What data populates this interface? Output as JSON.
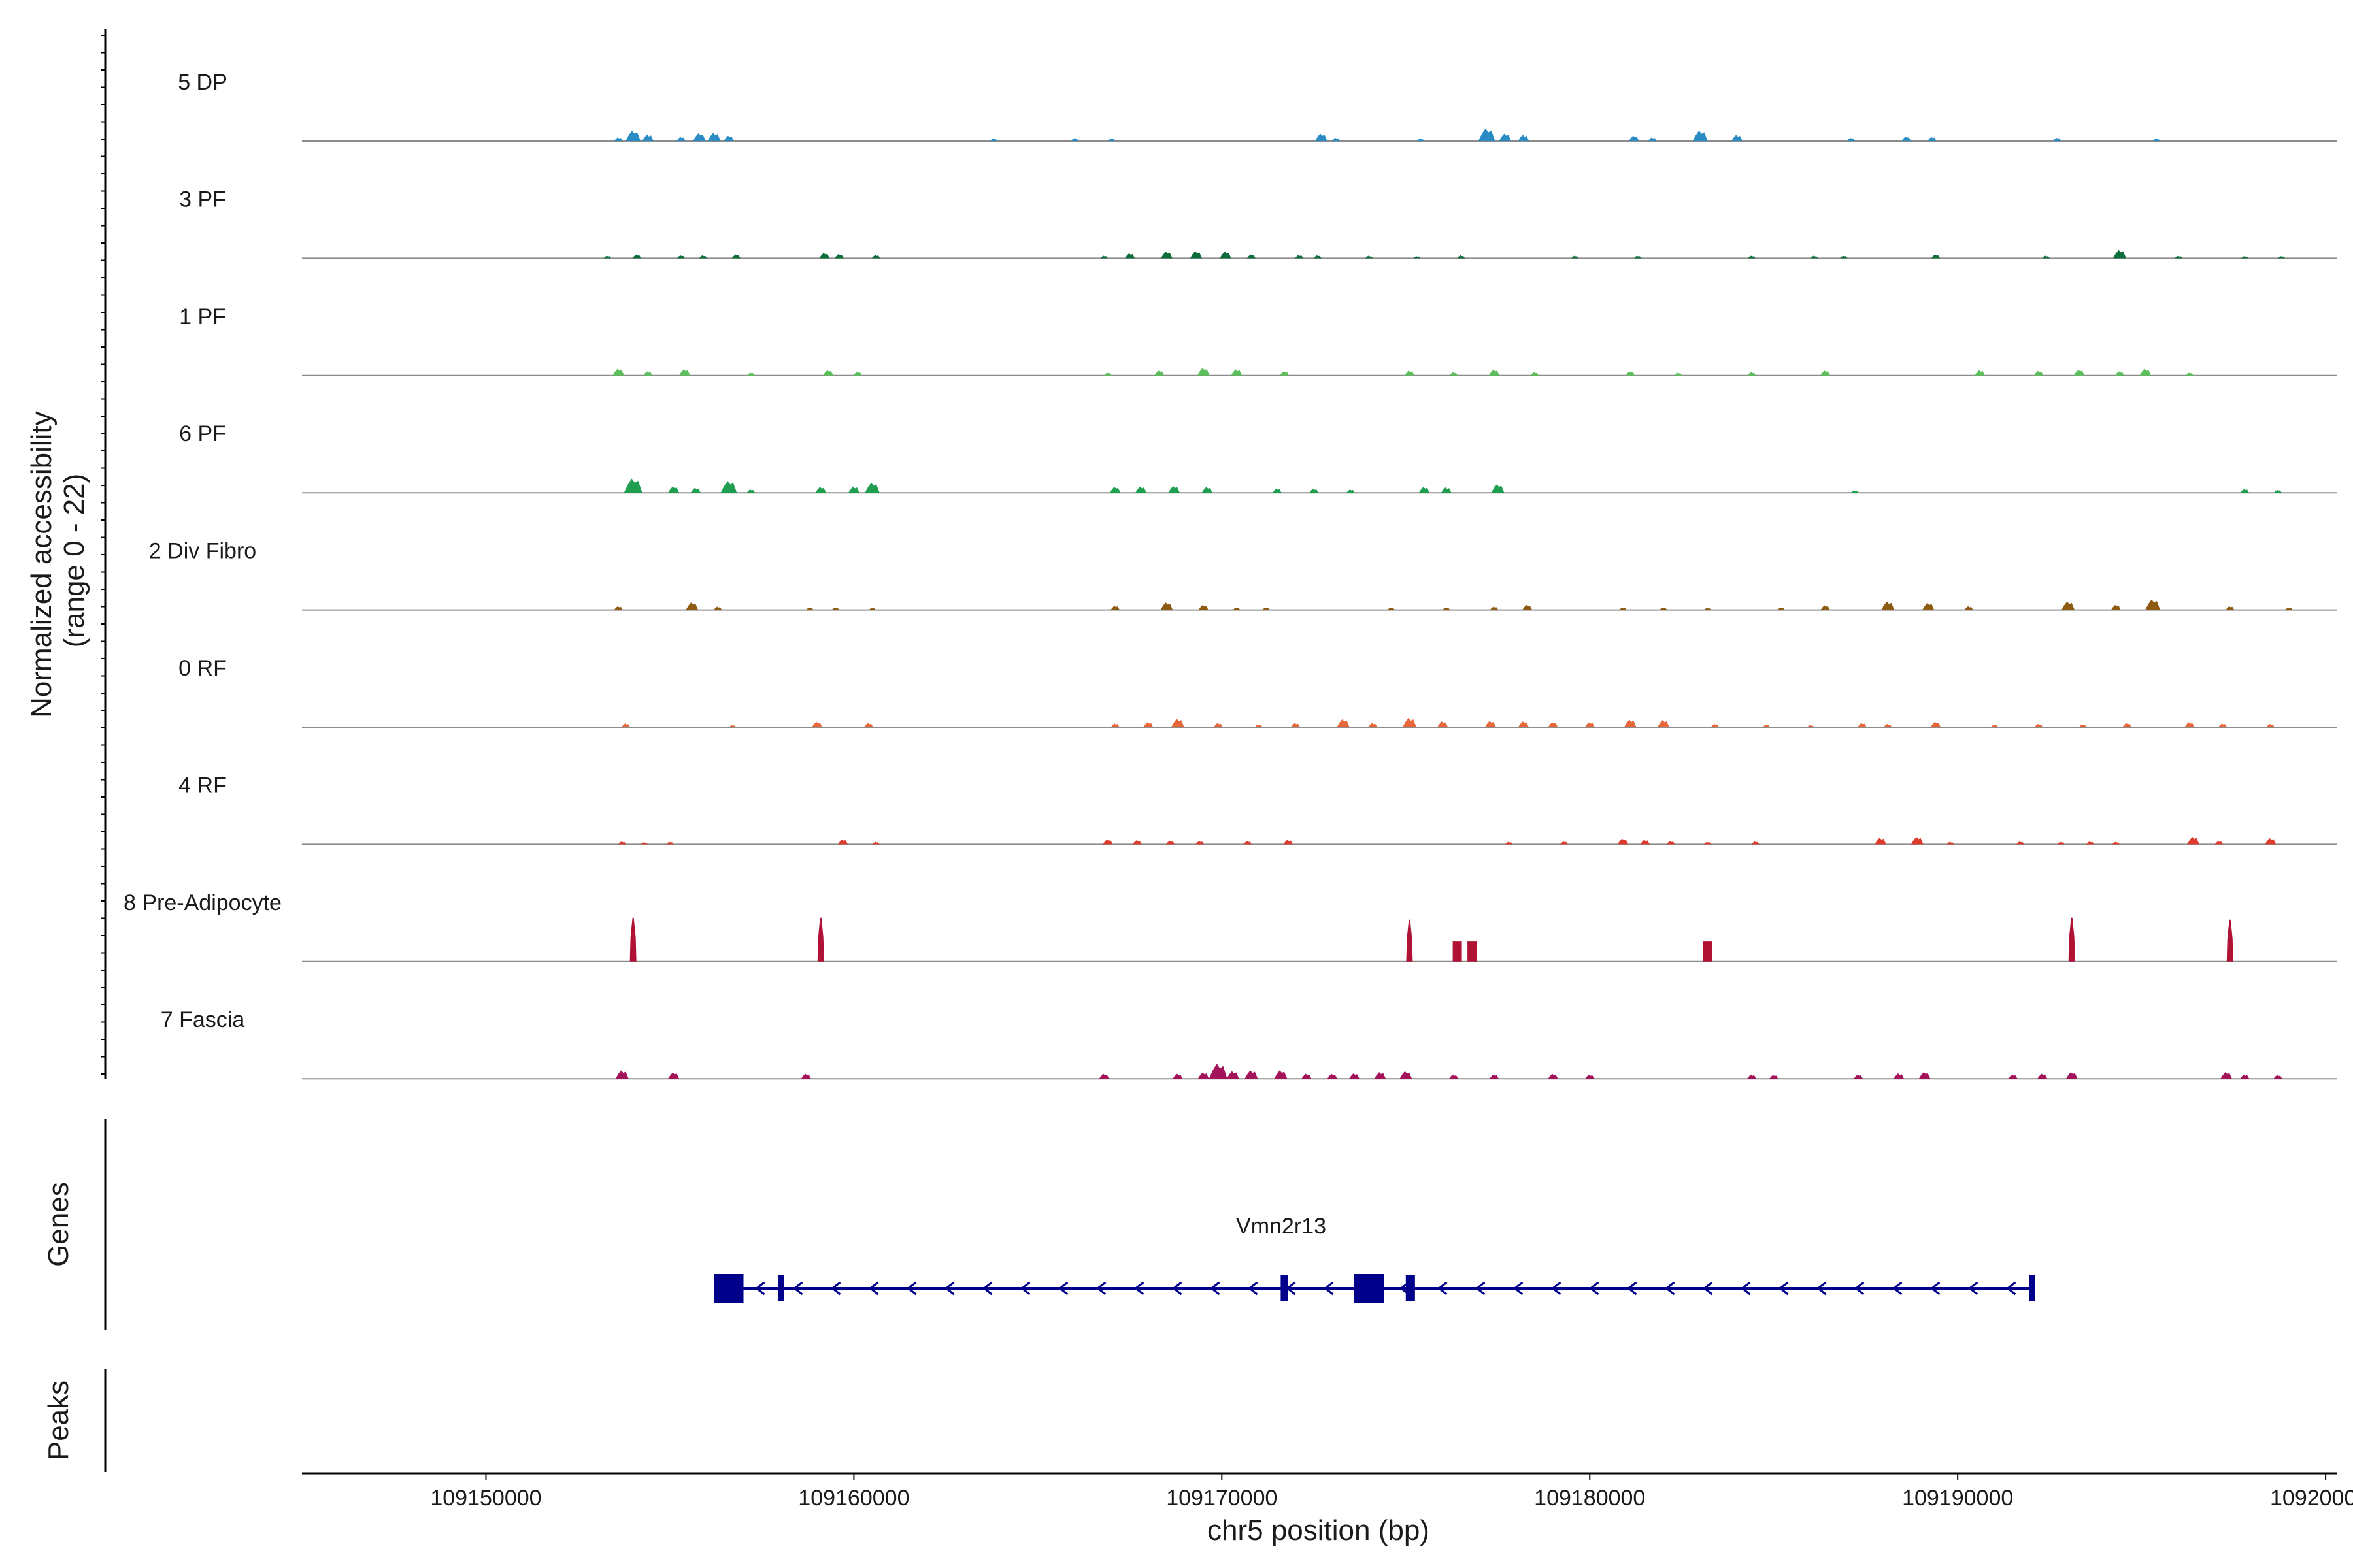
{
  "chart_data": {
    "type": "coverage_track",
    "chromosome": "chr5",
    "region": [
      109145000,
      109200300
    ],
    "xlabel": "chr5 position (bp)",
    "xticks": [
      109150000,
      109160000,
      109170000,
      109180000,
      109190000,
      109200000
    ],
    "xtick_labels": [
      "109150000",
      "109160000",
      "109170000",
      "109180000",
      "109190000",
      "109200000"
    ],
    "ylabel_line1": "Normalized accessibility",
    "ylabel_line2": "(range 0 - 22)",
    "ylim": [
      0,
      22
    ],
    "tracks": [
      {
        "name": "5 DP",
        "color": "#2b8cc4",
        "peaks": [
          [
            109153600,
            0.9
          ],
          [
            109154000,
            2.5
          ],
          [
            109154400,
            1.6
          ],
          [
            109155300,
            1.0
          ],
          [
            109155800,
            1.9
          ],
          [
            109156200,
            2.0
          ],
          [
            109156600,
            1.3
          ],
          [
            109163800,
            0.6
          ],
          [
            109166000,
            0.7
          ],
          [
            109167000,
            0.6
          ],
          [
            109172700,
            1.8
          ],
          [
            109173100,
            0.8
          ],
          [
            109175400,
            0.6
          ],
          [
            109177200,
            3.0
          ],
          [
            109177700,
            1.8
          ],
          [
            109178200,
            1.5
          ],
          [
            109181200,
            1.3
          ],
          [
            109181700,
            0.9
          ],
          [
            109183000,
            2.5
          ],
          [
            109184000,
            1.5
          ],
          [
            109187100,
            0.8
          ],
          [
            109188600,
            1.1
          ],
          [
            109189300,
            1.0
          ],
          [
            109192700,
            0.8
          ],
          [
            109195400,
            0.6
          ]
        ]
      },
      {
        "name": "3 PF",
        "color": "#0b6e3a",
        "peaks": [
          [
            109153300,
            0.6
          ],
          [
            109154100,
            0.9
          ],
          [
            109155300,
            0.7
          ],
          [
            109155900,
            0.7
          ],
          [
            109156800,
            0.9
          ],
          [
            109159200,
            1.3
          ],
          [
            109159600,
            1.0
          ],
          [
            109160600,
            0.8
          ],
          [
            109166800,
            0.6
          ],
          [
            109167500,
            1.2
          ],
          [
            109168500,
            1.6
          ],
          [
            109169300,
            1.7
          ],
          [
            109170100,
            1.6
          ],
          [
            109170800,
            0.9
          ],
          [
            109172100,
            0.8
          ],
          [
            109172600,
            0.7
          ],
          [
            109174000,
            0.6
          ],
          [
            109175300,
            0.5
          ],
          [
            109176500,
            0.7
          ],
          [
            109179600,
            0.6
          ],
          [
            109181300,
            0.6
          ],
          [
            109184400,
            0.6
          ],
          [
            109186100,
            0.6
          ],
          [
            109186900,
            0.6
          ],
          [
            109189400,
            0.9
          ],
          [
            109192400,
            0.6
          ],
          [
            109194400,
            2.0
          ],
          [
            109196000,
            0.6
          ],
          [
            109197800,
            0.5
          ],
          [
            109198800,
            0.5
          ]
        ]
      },
      {
        "name": "1 PF",
        "color": "#5cbf5c",
        "peaks": [
          [
            109153600,
            1.6
          ],
          [
            109154400,
            1.0
          ],
          [
            109155400,
            1.5
          ],
          [
            109157200,
            0.7
          ],
          [
            109159300,
            1.3
          ],
          [
            109160100,
            0.9
          ],
          [
            109166900,
            0.7
          ],
          [
            109168300,
            1.2
          ],
          [
            109169500,
            1.8
          ],
          [
            109170400,
            1.5
          ],
          [
            109171700,
            1.0
          ],
          [
            109175100,
            1.2
          ],
          [
            109176300,
            0.8
          ],
          [
            109177400,
            1.4
          ],
          [
            109178500,
            0.8
          ],
          [
            109181100,
            1.0
          ],
          [
            109182400,
            0.7
          ],
          [
            109184400,
            0.8
          ],
          [
            109186400,
            1.2
          ],
          [
            109190600,
            1.3
          ],
          [
            109192200,
            1.1
          ],
          [
            109193300,
            1.4
          ],
          [
            109194400,
            1.0
          ],
          [
            109195100,
            1.6
          ],
          [
            109196300,
            0.7
          ]
        ]
      },
      {
        "name": "6 PF",
        "color": "#1f9e4f",
        "peaks": [
          [
            109154000,
            3.4
          ],
          [
            109155100,
            1.5
          ],
          [
            109155700,
            1.2
          ],
          [
            109156600,
            2.8
          ],
          [
            109157200,
            0.8
          ],
          [
            109159100,
            1.4
          ],
          [
            109160000,
            1.5
          ],
          [
            109160500,
            2.4
          ],
          [
            109167100,
            1.4
          ],
          [
            109167800,
            1.5
          ],
          [
            109168700,
            1.6
          ],
          [
            109169600,
            1.4
          ],
          [
            109171500,
            1.0
          ],
          [
            109172500,
            1.0
          ],
          [
            109173500,
            0.8
          ],
          [
            109175500,
            1.4
          ],
          [
            109176100,
            1.3
          ],
          [
            109177500,
            2.0
          ],
          [
            109187200,
            0.6
          ],
          [
            109197800,
            0.9
          ],
          [
            109198700,
            0.7
          ]
        ]
      },
      {
        "name": "2 Div Fibro",
        "color": "#8c5a10",
        "peaks": [
          [
            109153600,
            0.9
          ],
          [
            109155600,
            1.8
          ],
          [
            109156300,
            0.8
          ],
          [
            109158800,
            0.6
          ],
          [
            109159500,
            0.6
          ],
          [
            109160500,
            0.5
          ],
          [
            109167100,
            1.0
          ],
          [
            109168500,
            1.8
          ],
          [
            109169500,
            1.2
          ],
          [
            109170400,
            0.6
          ],
          [
            109171200,
            0.6
          ],
          [
            109174600,
            0.6
          ],
          [
            109176100,
            0.6
          ],
          [
            109177400,
            0.8
          ],
          [
            109178300,
            1.2
          ],
          [
            109180900,
            0.6
          ],
          [
            109182000,
            0.6
          ],
          [
            109183200,
            0.5
          ],
          [
            109185200,
            0.6
          ],
          [
            109186400,
            1.1
          ],
          [
            109188100,
            2.0
          ],
          [
            109189200,
            1.7
          ],
          [
            109190300,
            0.9
          ],
          [
            109193000,
            2.0
          ],
          [
            109194300,
            1.2
          ],
          [
            109195300,
            2.5
          ],
          [
            109197400,
            0.9
          ],
          [
            109199000,
            0.6
          ]
        ]
      },
      {
        "name": "0 RF",
        "color": "#e8673a",
        "peaks": [
          [
            109153800,
            0.9
          ],
          [
            109156700,
            0.5
          ],
          [
            109159000,
            1.3
          ],
          [
            109160400,
            1.0
          ],
          [
            109167100,
            0.9
          ],
          [
            109168000,
            1.2
          ],
          [
            109168800,
            2.0
          ],
          [
            109169900,
            1.0
          ],
          [
            109171000,
            0.7
          ],
          [
            109172000,
            1.0
          ],
          [
            109173300,
            1.9
          ],
          [
            109174100,
            1.0
          ],
          [
            109175100,
            2.2
          ],
          [
            109176000,
            1.4
          ],
          [
            109177300,
            1.5
          ],
          [
            109178200,
            1.4
          ],
          [
            109179000,
            1.2
          ],
          [
            109180000,
            1.2
          ],
          [
            109181100,
            1.8
          ],
          [
            109182000,
            1.7
          ],
          [
            109183400,
            0.8
          ],
          [
            109184800,
            0.6
          ],
          [
            109186000,
            0.5
          ],
          [
            109187400,
            1.0
          ],
          [
            109188100,
            0.8
          ],
          [
            109189400,
            1.3
          ],
          [
            109191000,
            0.6
          ],
          [
            109192200,
            0.8
          ],
          [
            109193400,
            0.7
          ],
          [
            109194600,
            1.0
          ],
          [
            109196300,
            1.2
          ],
          [
            109197200,
            0.9
          ],
          [
            109198500,
            0.8
          ]
        ]
      },
      {
        "name": "4 RF",
        "color": "#dc3b2d",
        "peaks": [
          [
            109153700,
            0.7
          ],
          [
            109154300,
            0.5
          ],
          [
            109155000,
            0.6
          ],
          [
            109159700,
            1.2
          ],
          [
            109160600,
            0.6
          ],
          [
            109166900,
            1.2
          ],
          [
            109167700,
            1.0
          ],
          [
            109168600,
            0.9
          ],
          [
            109169400,
            0.8
          ],
          [
            109170700,
            0.8
          ],
          [
            109171800,
            1.1
          ],
          [
            109177800,
            0.6
          ],
          [
            109179300,
            0.7
          ],
          [
            109180900,
            1.4
          ],
          [
            109181500,
            1.1
          ],
          [
            109182200,
            0.8
          ],
          [
            109183200,
            0.6
          ],
          [
            109184500,
            0.7
          ],
          [
            109187900,
            1.6
          ],
          [
            109188900,
            1.8
          ],
          [
            109189800,
            0.6
          ],
          [
            109191700,
            0.7
          ],
          [
            109192800,
            0.6
          ],
          [
            109193600,
            0.7
          ],
          [
            109194300,
            0.6
          ],
          [
            109196400,
            1.8
          ],
          [
            109197100,
            0.8
          ],
          [
            109198500,
            1.5
          ]
        ]
      },
      {
        "name": "8 Pre-Adipocyte",
        "color": "#b01236",
        "peaks": [
          [
            109154000,
            10.5
          ],
          [
            109159100,
            10.5
          ],
          [
            109175100,
            10.0
          ],
          [
            109176400,
            4.8
          ],
          [
            109176800,
            4.8
          ],
          [
            109183200,
            4.8
          ],
          [
            109193100,
            10.5
          ],
          [
            109197400,
            10.0
          ]
        ]
      },
      {
        "name": "7 Fascia",
        "color": "#a3135a",
        "peaks": [
          [
            109153700,
            2.0
          ],
          [
            109155100,
            1.5
          ],
          [
            109158700,
            1.2
          ],
          [
            109166800,
            1.2
          ],
          [
            109168800,
            1.2
          ],
          [
            109169500,
            1.5
          ],
          [
            109169900,
            3.6
          ],
          [
            109170300,
            1.8
          ],
          [
            109170800,
            2.0
          ],
          [
            109171600,
            2.0
          ],
          [
            109172300,
            1.2
          ],
          [
            109173000,
            1.2
          ],
          [
            109173600,
            1.3
          ],
          [
            109174300,
            1.6
          ],
          [
            109175000,
            1.8
          ],
          [
            109176300,
            1.0
          ],
          [
            109177400,
            1.0
          ],
          [
            109179000,
            1.2
          ],
          [
            109180000,
            1.0
          ],
          [
            109184400,
            1.0
          ],
          [
            109185000,
            0.9
          ],
          [
            109187300,
            1.0
          ],
          [
            109188400,
            1.3
          ],
          [
            109189100,
            1.6
          ],
          [
            109191500,
            1.0
          ],
          [
            109192300,
            1.2
          ],
          [
            109193100,
            1.6
          ],
          [
            109197300,
            1.6
          ],
          [
            109197800,
            1.0
          ],
          [
            109198700,
            0.9
          ]
        ]
      }
    ],
    "gene": {
      "name": "Vmn2r13",
      "start": 109156200,
      "end": 109192100,
      "strand": "-",
      "exons": [
        [
          109156200,
          109157000
        ],
        [
          109157950,
          109158050
        ],
        [
          109171600,
          109171800
        ],
        [
          109173600,
          109174400
        ],
        [
          109175000,
          109175250
        ],
        [
          109191950,
          109192100
        ]
      ],
      "color": "#00008b"
    },
    "panels": {
      "genes_title": "Genes",
      "peaks_title": "Peaks"
    }
  }
}
